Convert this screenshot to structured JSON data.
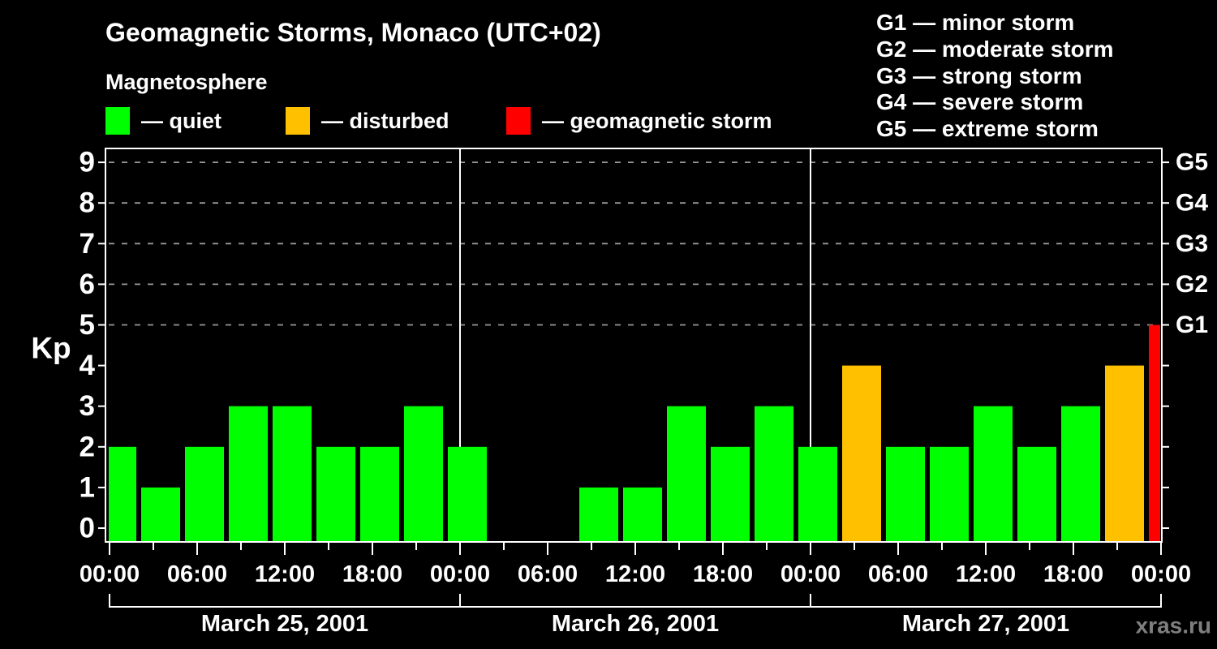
{
  "header": {
    "title": "Geomagnetic Storms, Monaco (UTC+02)",
    "subtitle": "Magnetosphere",
    "condition_legend": [
      {
        "key": "quiet",
        "label": "— quiet",
        "color": "#00ff00"
      },
      {
        "key": "disturbed",
        "label": "— disturbed",
        "color": "#ffc000"
      },
      {
        "key": "storm",
        "label": "— geomagnetic storm",
        "color": "#ff0000"
      }
    ],
    "gscale_legend": [
      {
        "label": "G1 — minor storm"
      },
      {
        "label": "G2 — moderate storm"
      },
      {
        "label": "G3 — strong storm"
      },
      {
        "label": "G4 — severe storm"
      },
      {
        "label": "G5 — extreme storm"
      }
    ]
  },
  "watermark": "xras.ru",
  "chart_data": {
    "type": "bar",
    "title": "Geomagnetic Storms, Monaco (UTC+02)",
    "ylabel": "Kp",
    "ylim": [
      0,
      9
    ],
    "yticks": [
      0,
      1,
      2,
      3,
      4,
      5,
      6,
      7,
      8,
      9
    ],
    "grid_levels": [
      5,
      6,
      7,
      8,
      9
    ],
    "grid": "dashed horizontal lines at Kp 5-9 only",
    "right_axis": [
      {
        "kp": 5,
        "label": "G1"
      },
      {
        "kp": 6,
        "label": "G2"
      },
      {
        "kp": 7,
        "label": "G3"
      },
      {
        "kp": 8,
        "label": "G4"
      },
      {
        "kp": 9,
        "label": "G5"
      }
    ],
    "x_time_labels": [
      "00:00",
      "06:00",
      "12:00",
      "18:00"
    ],
    "slot_hours": 3,
    "days": [
      {
        "date": "March 25, 2001",
        "kp": [
          2,
          1,
          2,
          3,
          3,
          2,
          2,
          3
        ]
      },
      {
        "date": "March 26, 2001",
        "kp": [
          2,
          null,
          null,
          1,
          1,
          3,
          2,
          3
        ]
      },
      {
        "date": "March 27, 2001",
        "kp": [
          2,
          4,
          2,
          2,
          3,
          2,
          3,
          4
        ]
      }
    ],
    "next_day_first_slot_kp": 5,
    "color_rule": {
      "quiet_max": 3,
      "disturbed_at": 4,
      "storm_from": 5
    },
    "colors": {
      "quiet": "#00ff00",
      "disturbed": "#ffc000",
      "storm": "#ff0000",
      "axis": "#ffffff",
      "grid": "#999999",
      "text": "#ffffff",
      "watermark": "#7f7f7f",
      "background": "#000000"
    },
    "legend_position": "top-left and top-right, outside plot"
  }
}
